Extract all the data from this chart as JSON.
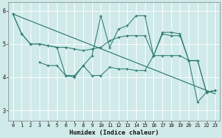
{
  "xlabel": "Humidex (Indice chaleur)",
  "bg_color": "#d0eaea",
  "grid_color": "#ffffff",
  "line_color": "#2d7b6e",
  "xlim_min": -0.5,
  "xlim_max": 23.5,
  "ylim_min": 2.7,
  "ylim_max": 6.25,
  "yticks": [
    3,
    4,
    5,
    6
  ],
  "xticks": [
    0,
    1,
    2,
    3,
    4,
    5,
    6,
    7,
    8,
    9,
    10,
    11,
    12,
    13,
    14,
    15,
    16,
    17,
    18,
    19,
    20,
    21,
    22,
    23
  ],
  "trend_x": [
    0,
    23
  ],
  "trend_y": [
    5.9,
    3.5
  ],
  "line1_x": [
    0,
    1,
    2,
    3,
    4,
    5,
    6,
    7,
    8,
    9,
    10,
    11,
    12,
    13,
    14,
    15,
    16,
    17,
    18,
    19,
    20,
    21,
    22,
    23
  ],
  "line1_y": [
    5.9,
    5.3,
    5.0,
    5.0,
    4.95,
    4.9,
    4.9,
    4.85,
    4.8,
    4.85,
    4.9,
    5.1,
    5.2,
    5.25,
    5.25,
    5.25,
    4.65,
    5.3,
    5.25,
    5.25,
    4.5,
    4.5,
    3.55,
    3.6
  ],
  "line2_x": [
    0,
    1,
    2,
    3,
    4,
    5,
    6,
    7,
    8,
    9,
    10,
    11,
    12,
    13,
    14,
    15,
    16,
    17,
    18,
    19,
    20,
    21,
    22,
    23
  ],
  "line2_y": [
    5.9,
    5.3,
    5.0,
    5.0,
    4.95,
    4.9,
    4.05,
    4.05,
    4.35,
    4.65,
    5.85,
    4.9,
    5.45,
    5.55,
    5.85,
    5.85,
    4.65,
    5.35,
    5.35,
    5.3,
    4.5,
    3.25,
    3.55,
    3.6
  ],
  "line3_x": [
    3,
    4,
    5,
    6,
    7,
    8,
    9,
    10,
    11,
    12,
    13,
    14,
    15,
    16,
    17,
    18,
    19,
    20,
    21,
    22,
    23
  ],
  "line3_y": [
    4.45,
    4.35,
    4.35,
    4.05,
    4.0,
    4.35,
    4.05,
    4.05,
    4.3,
    4.25,
    4.25,
    4.2,
    4.2,
    4.65,
    4.65,
    4.65,
    4.65,
    4.5,
    4.5,
    3.55,
    3.6
  ]
}
